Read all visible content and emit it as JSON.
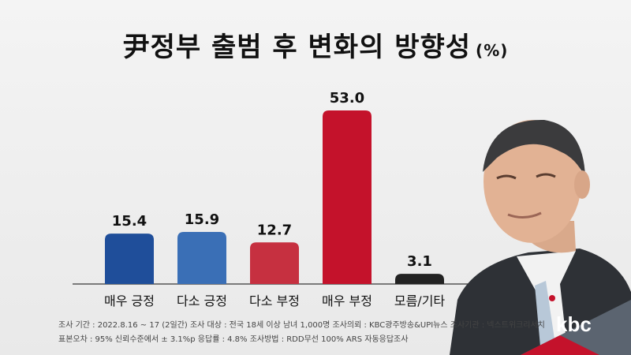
{
  "title": "尹정부 출범 후 변화의 방향성",
  "title_unit": "(%)",
  "chart_data": {
    "type": "bar",
    "categories": [
      "매우 긍정",
      "다소 긍정",
      "다소 부정",
      "매우 부정",
      "모름/기타"
    ],
    "values": [
      15.4,
      15.9,
      12.7,
      53.0,
      3.1
    ],
    "value_labels": [
      "15.4",
      "15.9",
      "12.7",
      "53.0",
      "3.1"
    ],
    "colors": [
      "#1f4e9a",
      "#3a6fb6",
      "#c63040",
      "#c4122b",
      "#222222"
    ],
    "ylim": [
      0,
      53.0
    ],
    "grid": false,
    "legend": "none"
  },
  "footer": {
    "line1": "조사 기간 : 2022.8.16 ~ 17 (2일간)   조사 대상 : 전국 18세 이상 남녀 1,000명 조사의뢰 : KBC광주방송&UPI뉴스   조사기관 : 넥스트위크리서치",
    "line2": "표본오차 : 95% 신뢰수준에서 ± 3.1%p   응답률 : 4.8%   조사방법 : RDD무선 100% ARS 자동응답조사"
  },
  "logo": "kbc"
}
